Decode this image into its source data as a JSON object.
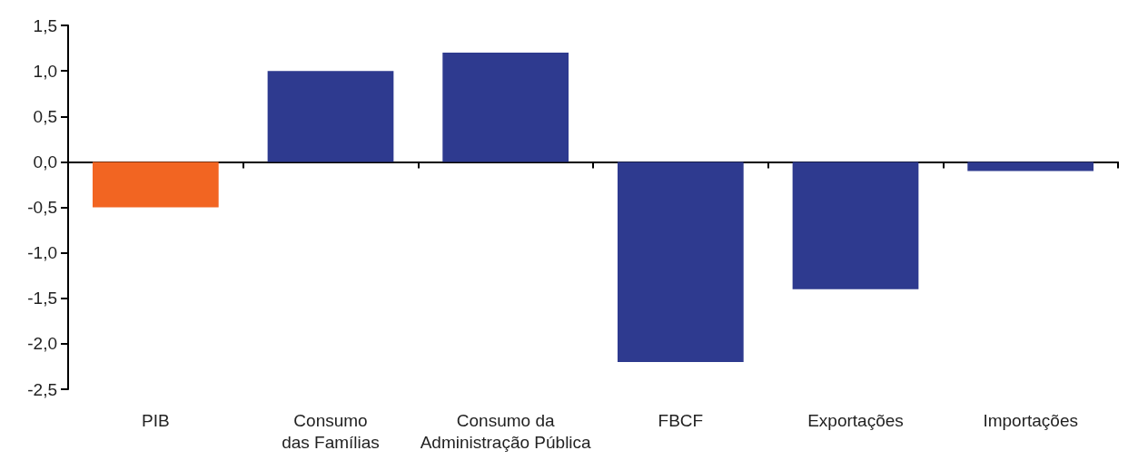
{
  "chart_data": {
    "type": "bar",
    "categories": [
      "PIB",
      "Consumo\ndas Famílias",
      "Consumo da\nAdministração Pública",
      "FBCF",
      "Exportações",
      "Importações"
    ],
    "values": [
      -0.5,
      1.0,
      1.2,
      -2.2,
      -1.4,
      -0.1
    ],
    "colors": [
      "#f26522",
      "#2e3a8f",
      "#2e3a8f",
      "#2e3a8f",
      "#2e3a8f",
      "#2e3a8f"
    ],
    "ylim": [
      -2.5,
      1.5
    ],
    "yticks": [
      {
        "value": -2.5,
        "label": "-2,5"
      },
      {
        "value": -2,
        "label": "-2,0"
      },
      {
        "value": -1.5,
        "label": "-1,5"
      },
      {
        "value": -1,
        "label": "-1,0"
      },
      {
        "value": -0.5,
        "label": "-0,5"
      },
      {
        "value": 0,
        "label": "0,0"
      },
      {
        "value": 0.5,
        "label": "0,5"
      },
      {
        "value": 1,
        "label": "1,0"
      },
      {
        "value": 1.5,
        "label": "1,5"
      }
    ]
  }
}
